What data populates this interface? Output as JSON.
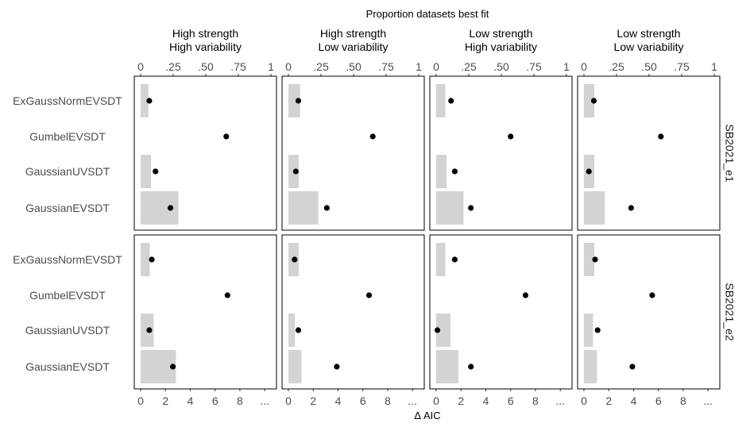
{
  "chart_data": {
    "type": "bar",
    "top_title": "Proportion datasets best fit",
    "bottom_title": "Δ AIC",
    "columns": [
      [
        "High strength",
        "High variability"
      ],
      [
        "High strength",
        "Low variability"
      ],
      [
        "Low strength",
        "High variability"
      ],
      [
        "Low strength",
        "Low variability"
      ]
    ],
    "rows": [
      "SB2021_e1",
      "SB2021_e2"
    ],
    "categories": [
      "ExGaussNormEVSDT",
      "GumbelEVSDT",
      "GaussianUVSDT",
      "GaussianEVSDT"
    ],
    "top_axis": {
      "ticks": [
        0,
        0.25,
        0.5,
        0.75,
        1
      ],
      "tick_labels": [
        "0",
        ".25",
        ".50",
        ".75",
        "1"
      ],
      "lim": [
        0,
        1
      ]
    },
    "bottom_axis": {
      "ticks": [
        0,
        2,
        4,
        6,
        8,
        10
      ],
      "tick_labels": [
        "0",
        "2",
        "4",
        "6",
        "8",
        "..."
      ],
      "lim": [
        0,
        10.5
      ]
    },
    "panels": [
      {
        "row": 0,
        "col": 0,
        "bars": [
          0.06,
          0,
          0.08,
          0.29
        ],
        "dots": [
          0.7,
          6.9,
          1.2,
          2.4
        ]
      },
      {
        "row": 0,
        "col": 1,
        "bars": [
          0.09,
          0,
          0.08,
          0.23
        ],
        "dots": [
          0.8,
          6.8,
          0.6,
          3.1
        ]
      },
      {
        "row": 0,
        "col": 2,
        "bars": [
          0.07,
          0,
          0.08,
          0.21
        ],
        "dots": [
          1.2,
          6.0,
          1.5,
          2.8
        ]
      },
      {
        "row": 0,
        "col": 3,
        "bars": [
          0.08,
          0,
          0.08,
          0.16
        ],
        "dots": [
          0.8,
          6.2,
          0.4,
          3.8
        ]
      },
      {
        "row": 1,
        "col": 0,
        "bars": [
          0.07,
          0,
          0.1,
          0.27
        ],
        "dots": [
          0.9,
          7.0,
          0.7,
          2.6
        ]
      },
      {
        "row": 1,
        "col": 1,
        "bars": [
          0.08,
          0,
          0.05,
          0.1
        ],
        "dots": [
          0.5,
          6.5,
          0.8,
          3.9
        ]
      },
      {
        "row": 1,
        "col": 2,
        "bars": [
          0.07,
          0,
          0.11,
          0.17
        ],
        "dots": [
          1.5,
          7.2,
          0.1,
          2.8
        ]
      },
      {
        "row": 1,
        "col": 3,
        "bars": [
          0.08,
          0,
          0.07,
          0.1
        ],
        "dots": [
          0.9,
          5.5,
          1.1,
          3.9
        ]
      }
    ],
    "colors": {
      "bar": "#d3d3d3",
      "dot": "#000000",
      "panel_border": "#000000"
    }
  }
}
